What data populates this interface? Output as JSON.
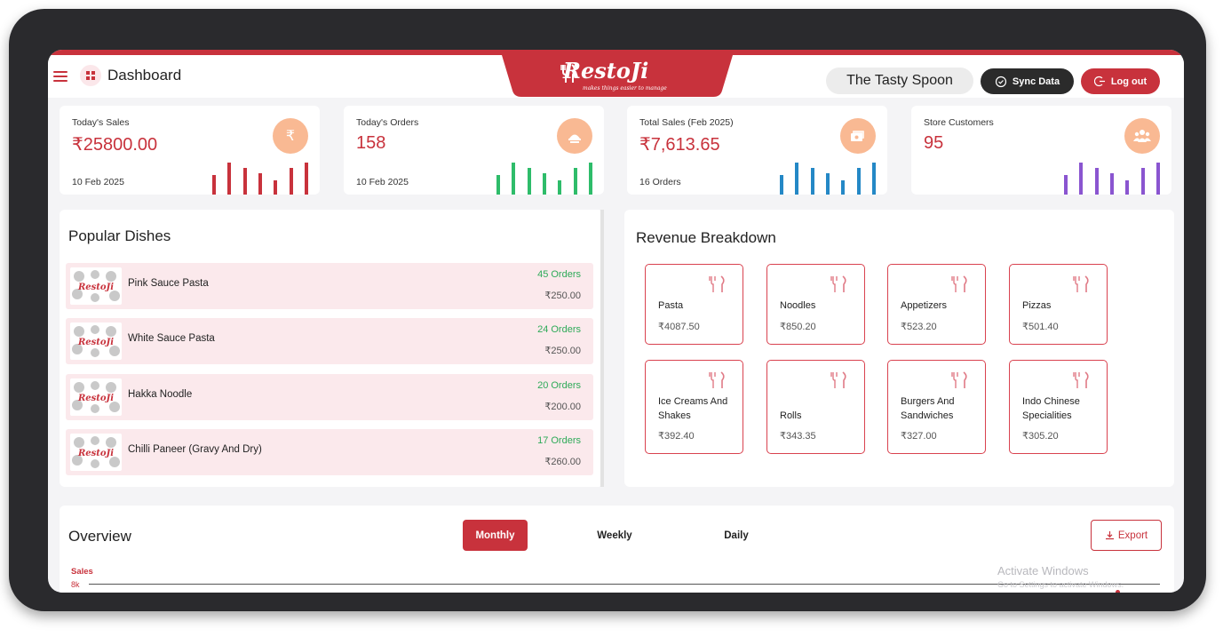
{
  "header": {
    "title": "Dashboard",
    "logo_text": "RestoJi",
    "logo_tagline": "makes things easier to manage",
    "store_name": "The Tasty Spoon",
    "sync_label": "Sync Data",
    "logout_label": "Log out"
  },
  "stats": [
    {
      "label": "Today's Sales",
      "value": "₹25800.00",
      "sub": "10 Feb 2025",
      "icon": "rupee-icon",
      "bar_color": "#c8323c"
    },
    {
      "label": "Today's Orders",
      "value": "158",
      "sub": "10 Feb 2025",
      "icon": "order-tray-icon",
      "bar_color": "#2ebc6a"
    },
    {
      "label": "Total Sales (Feb 2025)",
      "value": "₹7,613.65",
      "sub": "16 Orders",
      "icon": "cash-icon",
      "bar_color": "#2488c6"
    },
    {
      "label": "Store Customers",
      "value": "95",
      "sub": "",
      "icon": "customers-icon",
      "bar_color": "#8a55d0"
    }
  ],
  "popular": {
    "title": "Popular Dishes",
    "dishes": [
      {
        "name": "Pink Sauce Pasta",
        "orders": "45 Orders",
        "price": "₹250.00"
      },
      {
        "name": "White Sauce Pasta",
        "orders": "24 Orders",
        "price": "₹250.00"
      },
      {
        "name": "Hakka Noodle",
        "orders": "20 Orders",
        "price": "₹200.00"
      },
      {
        "name": "Chilli Paneer (Gravy And Dry)",
        "orders": "17 Orders",
        "price": "₹260.00"
      }
    ]
  },
  "revenue": {
    "title": "Revenue Breakdown",
    "items": [
      {
        "name": "Pasta",
        "price": "₹4087.50"
      },
      {
        "name": "Noodles",
        "price": "₹850.20"
      },
      {
        "name": "Appetizers",
        "price": "₹523.20"
      },
      {
        "name": "Pizzas",
        "price": "₹501.40"
      },
      {
        "name": "Ice Creams And Shakes",
        "price": "₹392.40"
      },
      {
        "name": "Rolls",
        "price": "₹343.35"
      },
      {
        "name": "Burgers And Sandwiches",
        "price": "₹327.00"
      },
      {
        "name": "Indo Chinese Specialities",
        "price": "₹305.20"
      }
    ]
  },
  "overview": {
    "title": "Overview",
    "tabs": [
      "Monthly",
      "Weekly",
      "Daily"
    ],
    "active_tab": "Monthly",
    "export_label": "Export",
    "y_label": "Sales",
    "y_tick": "8k"
  },
  "watermark": {
    "line1": "Activate Windows",
    "line2": "Go to Settings to activate Windows."
  },
  "colors": {
    "brand": "#c8323c",
    "orders_green": "#2eaa58"
  }
}
